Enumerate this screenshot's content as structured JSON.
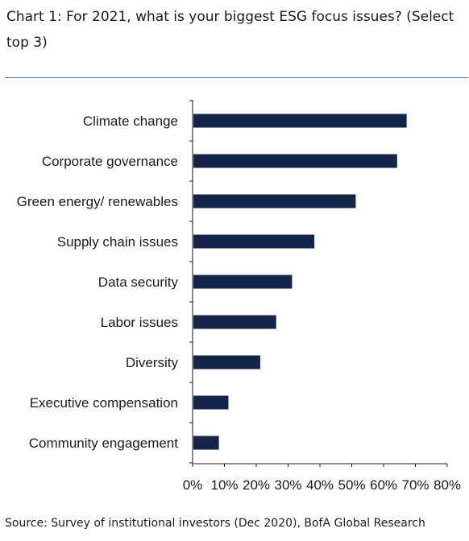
{
  "title": "Chart 1: For 2021, what is your biggest ESG focus issues? (Select top 3)",
  "source": "Source: Survey of institutional investors (Dec 2020), BofA Global Research",
  "chart_data": {
    "type": "bar",
    "orientation": "horizontal",
    "categories": [
      "Climate change",
      "Corporate governance",
      "Green energy/ renewables",
      "Supply chain issues",
      "Data security",
      "Labor issues",
      "Diversity",
      "Executive compensation",
      "Community engagement"
    ],
    "values": [
      67,
      64,
      51,
      38,
      31,
      26,
      21,
      11,
      8
    ],
    "xlim": [
      0,
      80
    ],
    "xticks": [
      "0%",
      "10%",
      "20%",
      "30%",
      "40%",
      "50%",
      "60%",
      "70%",
      "80%"
    ],
    "bar_color": "#14244a",
    "grid": false,
    "legend": "none"
  }
}
